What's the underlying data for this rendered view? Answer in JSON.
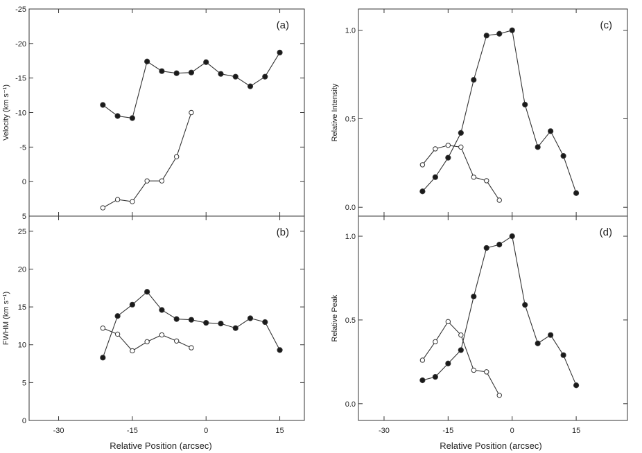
{
  "xlabel_left": "Relative Position (arcsec)",
  "xlabel_right": "Relative Position (arcsec)",
  "chart_data": [
    {
      "id": "a",
      "type": "line",
      "panel_label": "(a)",
      "ylabel": "Velocity (km s⁻¹)",
      "xlim": [
        -36,
        20
      ],
      "ylim": [
        -25,
        5
      ],
      "y_inverted": true,
      "xticks": [
        -30,
        -15,
        0,
        15
      ],
      "yticks": [
        -25,
        -20,
        -15,
        -10,
        -5,
        0,
        5
      ],
      "ytick_labels": [
        "-25",
        "-20",
        "-15",
        "-10",
        "-5",
        "0",
        "5"
      ],
      "series": [
        {
          "name": "filled",
          "filled": true,
          "x": [
            -21,
            -18,
            -15,
            -12,
            -9,
            -6,
            -3,
            0,
            3,
            6,
            9,
            12,
            15
          ],
          "y": [
            -11.1,
            -9.5,
            -9.2,
            -17.4,
            -16.0,
            -15.7,
            -15.8,
            -17.3,
            -15.6,
            -15.2,
            -13.8,
            -15.2,
            -18.7
          ]
        },
        {
          "name": "open",
          "filled": false,
          "x": [
            -21,
            -18,
            -15,
            -12,
            -9,
            -6,
            -3
          ],
          "y": [
            3.8,
            2.6,
            2.9,
            -0.1,
            -0.1,
            -3.6,
            -10.0
          ]
        }
      ]
    },
    {
      "id": "b",
      "type": "line",
      "panel_label": "(b)",
      "ylabel": "FWHM (km s⁻¹)",
      "xlim": [
        -36,
        20
      ],
      "ylim": [
        0,
        27
      ],
      "y_inverted": false,
      "xticks": [
        -30,
        -15,
        0,
        15
      ],
      "yticks": [
        0,
        5,
        10,
        15,
        20,
        25
      ],
      "ytick_labels": [
        "0",
        "5",
        "10",
        "15",
        "20",
        "25"
      ],
      "series": [
        {
          "name": "filled",
          "filled": true,
          "x": [
            -21,
            -18,
            -15,
            -12,
            -9,
            -6,
            -3,
            0,
            3,
            6,
            9,
            12,
            15
          ],
          "y": [
            8.3,
            13.8,
            15.3,
            17.0,
            14.6,
            13.4,
            13.3,
            12.9,
            12.8,
            12.2,
            13.5,
            13.0,
            9.3
          ]
        },
        {
          "name": "open",
          "filled": false,
          "x": [
            -21,
            -18,
            -15,
            -12,
            -9,
            -6,
            -3
          ],
          "y": [
            12.2,
            11.4,
            9.2,
            10.4,
            11.3,
            10.5,
            9.6
          ]
        }
      ]
    },
    {
      "id": "c",
      "type": "line",
      "panel_label": "(c)",
      "ylabel": "Relative Intensity",
      "xlim": [
        -36,
        27
      ],
      "ylim": [
        -0.05,
        1.12
      ],
      "y_inverted": false,
      "xticks": [
        -30,
        -15,
        0,
        15
      ],
      "yticks": [
        0.0,
        0.5,
        1.0
      ],
      "ytick_labels": [
        "0.0",
        "0.5",
        "1.0"
      ],
      "series": [
        {
          "name": "filled",
          "filled": true,
          "x": [
            -21,
            -18,
            -15,
            -12,
            -9,
            -6,
            -3,
            0,
            3,
            6,
            9,
            12,
            15
          ],
          "y": [
            0.09,
            0.17,
            0.28,
            0.42,
            0.72,
            0.97,
            0.98,
            1.0,
            0.58,
            0.34,
            0.43,
            0.29,
            0.08
          ]
        },
        {
          "name": "open",
          "filled": false,
          "x": [
            -21,
            -18,
            -15,
            -12,
            -9,
            -6,
            -3
          ],
          "y": [
            0.24,
            0.33,
            0.35,
            0.34,
            0.17,
            0.15,
            0.04
          ]
        }
      ]
    },
    {
      "id": "d",
      "type": "line",
      "panel_label": "(d)",
      "ylabel": "Relative Peak",
      "xlim": [
        -36,
        27
      ],
      "ylim": [
        -0.1,
        1.12
      ],
      "y_inverted": false,
      "xticks": [
        -30,
        -15,
        0,
        15
      ],
      "yticks": [
        0.0,
        0.5,
        1.0
      ],
      "ytick_labels": [
        "0.0",
        "0.5",
        "1.0"
      ],
      "series": [
        {
          "name": "filled",
          "filled": true,
          "x": [
            -21,
            -18,
            -15,
            -12,
            -9,
            -6,
            -3,
            0,
            3,
            6,
            9,
            12,
            15
          ],
          "y": [
            0.14,
            0.16,
            0.24,
            0.32,
            0.64,
            0.93,
            0.95,
            1.0,
            0.59,
            0.36,
            0.41,
            0.29,
            0.11
          ]
        },
        {
          "name": "open",
          "filled": false,
          "x": [
            -21,
            -18,
            -15,
            -12,
            -9,
            -6,
            -3
          ],
          "y": [
            0.26,
            0.37,
            0.49,
            0.41,
            0.2,
            0.19,
            0.05
          ]
        }
      ]
    }
  ]
}
